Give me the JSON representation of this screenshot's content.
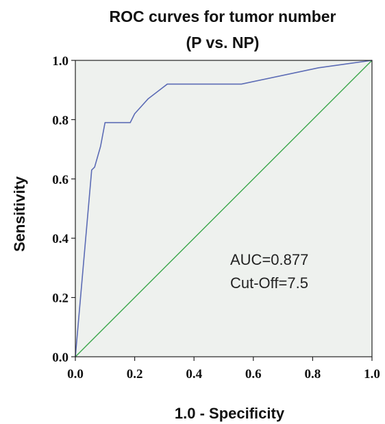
{
  "chart_data": {
    "type": "line",
    "title": [
      "ROC curves for tumor number",
      "(P vs. NP)"
    ],
    "xlabel": "1.0 - Specificity",
    "ylabel": "Sensitivity",
    "xlim": [
      0.0,
      1.0
    ],
    "ylim": [
      0.0,
      1.0
    ],
    "x_ticks": [
      "0.0",
      "0.2",
      "0.4",
      "0.6",
      "0.8",
      "1.0"
    ],
    "y_ticks": [
      "0.0",
      "0.2",
      "0.4",
      "0.6",
      "0.8",
      "1.0"
    ],
    "grid": false,
    "series": [
      {
        "color": "#5b6bb5",
        "points": [
          [
            0.0,
            0.0
          ],
          [
            0.055,
            0.63
          ],
          [
            0.065,
            0.64
          ],
          [
            0.085,
            0.71
          ],
          [
            0.1,
            0.79
          ],
          [
            0.185,
            0.79
          ],
          [
            0.2,
            0.82
          ],
          [
            0.245,
            0.87
          ],
          [
            0.31,
            0.92
          ],
          [
            0.56,
            0.92
          ],
          [
            0.82,
            0.975
          ],
          [
            1.0,
            1.0
          ]
        ]
      },
      {
        "color": "#3aa64a",
        "points": [
          [
            0.0,
            0.0
          ],
          [
            1.0,
            1.0
          ]
        ]
      }
    ],
    "annotations": [
      "AUC=0.877",
      "Cut-Off=7.5"
    ]
  },
  "colors": {
    "plot_background": "#eef1ee",
    "roc_curve": "#5b6bb5",
    "reference_line": "#3aa64a",
    "axis": "#222222"
  }
}
